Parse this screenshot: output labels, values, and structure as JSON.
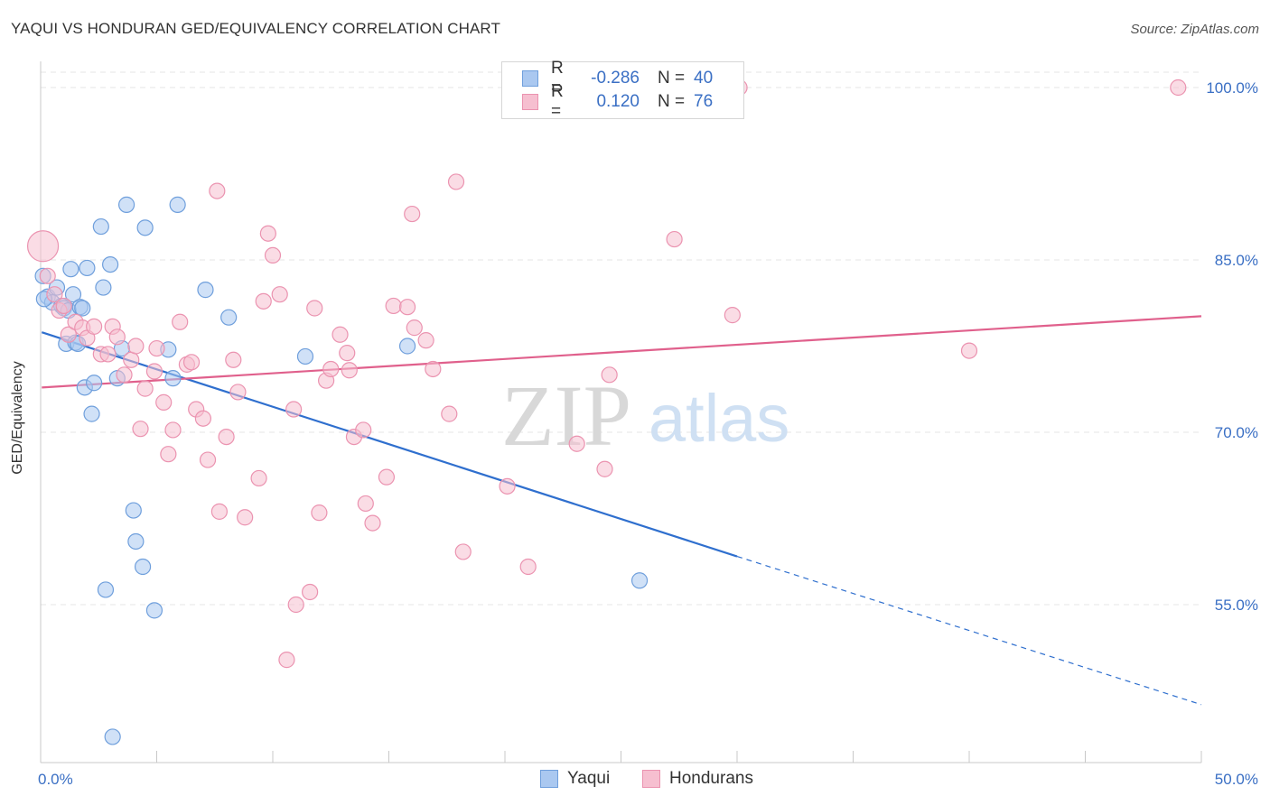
{
  "title": "YAQUI VS HONDURAN GED/EQUIVALENCY CORRELATION CHART",
  "source": "Source: ZipAtlas.com",
  "watermark": {
    "zip": "ZIP",
    "atlas": "atlas"
  },
  "colors": {
    "blue_fill": "#aac8f0",
    "blue_stroke": "#6f9fdc",
    "blue_line": "#2f6fce",
    "pink_fill": "#f6bfd0",
    "pink_stroke": "#eb93b0",
    "pink_line": "#e0608c",
    "tick_label": "#3a6fc4",
    "grid": "#e4e4e4",
    "axis": "#c8c8c8"
  },
  "legend_top": {
    "rows": [
      {
        "series": "Yaqui",
        "r_label": "R =",
        "r_value": "-0.286",
        "n_label": "N =",
        "n_value": "40"
      },
      {
        "series": "Hondurans",
        "r_label": "R =",
        "r_value": "0.120",
        "n_label": "N =",
        "n_value": "76"
      }
    ]
  },
  "legend_bottom": [
    "Yaqui",
    "Hondurans"
  ],
  "chart_data": {
    "type": "scatter",
    "xlabel": "",
    "ylabel": "GED/Equivalency",
    "xlim": [
      0,
      50
    ],
    "ylim": [
      41.5,
      101.5
    ],
    "x_tick_labels": [
      {
        "value": 0,
        "label": "0.0%"
      },
      {
        "value": 50,
        "label": "50.0%"
      }
    ],
    "y_tick_labels": [
      {
        "value": 100,
        "label": "100.0%"
      },
      {
        "value": 85,
        "label": "85.0%"
      },
      {
        "value": 70,
        "label": "70.0%"
      },
      {
        "value": 55,
        "label": "55.0%"
      }
    ],
    "x_minor_ticks": [
      0,
      5,
      10,
      15,
      20,
      25,
      30,
      35,
      40,
      45,
      50
    ],
    "series": [
      {
        "name": "Yaqui",
        "r": -0.286,
        "n": 40,
        "trend": {
          "x0": 0.05,
          "y0": 78.7,
          "x1": 30,
          "y1": 59.2,
          "dash_to_x": 50,
          "dash_to_y": 46.3
        },
        "points": [
          [
            0.1,
            83.6
          ],
          [
            0.3,
            81.8
          ],
          [
            0.5,
            81.3
          ],
          [
            0.7,
            82.6
          ],
          [
            0.9,
            81.0
          ],
          [
            1.0,
            80.8
          ],
          [
            1.1,
            77.7
          ],
          [
            1.2,
            80.6
          ],
          [
            1.3,
            84.2
          ],
          [
            1.4,
            82.0
          ],
          [
            1.5,
            77.8
          ],
          [
            1.7,
            80.9
          ],
          [
            1.8,
            80.8
          ],
          [
            1.9,
            73.9
          ],
          [
            2.0,
            84.3
          ],
          [
            2.2,
            71.6
          ],
          [
            2.3,
            74.3
          ],
          [
            2.6,
            87.9
          ],
          [
            2.7,
            82.6
          ],
          [
            2.8,
            56.3
          ],
          [
            3.0,
            84.6
          ],
          [
            3.1,
            43.5
          ],
          [
            3.3,
            74.7
          ],
          [
            3.5,
            77.3
          ],
          [
            3.7,
            89.8
          ],
          [
            4.0,
            63.2
          ],
          [
            4.1,
            60.5
          ],
          [
            4.4,
            58.3
          ],
          [
            4.5,
            87.8
          ],
          [
            4.9,
            54.5
          ],
          [
            5.5,
            77.2
          ],
          [
            5.7,
            74.7
          ],
          [
            5.9,
            89.8
          ],
          [
            7.1,
            82.4
          ],
          [
            8.1,
            80.0
          ],
          [
            11.4,
            76.6
          ],
          [
            15.8,
            77.5
          ],
          [
            25.8,
            57.1
          ],
          [
            0.15,
            81.6
          ],
          [
            1.6,
            77.7
          ]
        ]
      },
      {
        "name": "Hondurans",
        "r": 0.12,
        "n": 76,
        "trend": {
          "x0": 0.05,
          "y0": 73.9,
          "x1": 50,
          "y1": 80.1
        },
        "points": [
          [
            0.1,
            86.2
          ],
          [
            0.3,
            83.6
          ],
          [
            0.6,
            82.0
          ],
          [
            0.8,
            80.6
          ],
          [
            1.0,
            81.0
          ],
          [
            1.2,
            78.5
          ],
          [
            1.5,
            79.6
          ],
          [
            1.8,
            79.1
          ],
          [
            2.0,
            78.2
          ],
          [
            2.3,
            79.2
          ],
          [
            2.6,
            76.8
          ],
          [
            2.9,
            76.8
          ],
          [
            3.1,
            79.2
          ],
          [
            3.3,
            78.3
          ],
          [
            3.6,
            75.0
          ],
          [
            3.9,
            76.3
          ],
          [
            4.1,
            77.5
          ],
          [
            4.3,
            70.3
          ],
          [
            4.5,
            73.8
          ],
          [
            4.9,
            75.3
          ],
          [
            5.0,
            77.3
          ],
          [
            5.3,
            72.6
          ],
          [
            5.5,
            68.1
          ],
          [
            5.7,
            70.2
          ],
          [
            6.0,
            79.6
          ],
          [
            6.3,
            75.9
          ],
          [
            6.5,
            76.1
          ],
          [
            6.7,
            72.0
          ],
          [
            7.0,
            71.2
          ],
          [
            7.2,
            67.6
          ],
          [
            7.6,
            91.0
          ],
          [
            7.7,
            63.1
          ],
          [
            8.0,
            69.6
          ],
          [
            8.3,
            76.3
          ],
          [
            8.5,
            73.5
          ],
          [
            8.8,
            62.6
          ],
          [
            9.4,
            66.0
          ],
          [
            9.6,
            81.4
          ],
          [
            9.8,
            87.3
          ],
          [
            10.0,
            85.4
          ],
          [
            10.3,
            82.0
          ],
          [
            10.6,
            50.2
          ],
          [
            10.9,
            72.0
          ],
          [
            11.0,
            55.0
          ],
          [
            11.6,
            56.1
          ],
          [
            11.8,
            80.8
          ],
          [
            12.0,
            63.0
          ],
          [
            12.3,
            74.5
          ],
          [
            12.5,
            75.5
          ],
          [
            12.9,
            78.5
          ],
          [
            13.2,
            76.9
          ],
          [
            13.3,
            75.4
          ],
          [
            13.5,
            69.6
          ],
          [
            13.9,
            70.2
          ],
          [
            14.0,
            63.8
          ],
          [
            14.3,
            62.1
          ],
          [
            14.9,
            66.1
          ],
          [
            15.2,
            81.0
          ],
          [
            15.8,
            80.9
          ],
          [
            16.1,
            79.1
          ],
          [
            16.0,
            89.0
          ],
          [
            16.6,
            78.0
          ],
          [
            16.9,
            75.5
          ],
          [
            17.6,
            71.6
          ],
          [
            17.9,
            91.8
          ],
          [
            18.2,
            59.6
          ],
          [
            20.1,
            65.3
          ],
          [
            21.0,
            58.3
          ],
          [
            23.1,
            69.0
          ],
          [
            24.3,
            66.8
          ],
          [
            24.5,
            75.0
          ],
          [
            27.3,
            86.8
          ],
          [
            29.8,
            80.2
          ],
          [
            30.1,
            100.0
          ],
          [
            40.0,
            77.1
          ],
          [
            49.0,
            100.0
          ]
        ]
      }
    ]
  }
}
